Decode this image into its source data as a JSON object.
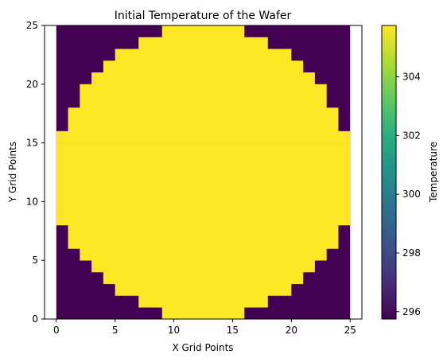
{
  "chart_data": {
    "type": "heatmap",
    "title": "Initial Temperature of the Wafer",
    "xlabel": "X Grid Points",
    "ylabel": "Y Grid Points",
    "xlim": [
      0,
      25
    ],
    "ylim": [
      0,
      25
    ],
    "xticks": [
      "0",
      "5",
      "10",
      "15",
      "20",
      "25"
    ],
    "yticks": [
      "0",
      "5",
      "10",
      "15",
      "20",
      "25"
    ],
    "grid": false,
    "colormap": "viridis",
    "value_range": [
      295.75,
      305.75
    ],
    "background_temperature": 295.75,
    "wafer_temperature": 305.75,
    "hot_spans_by_row": [
      [
        9,
        16
      ],
      [
        7,
        18
      ],
      [
        5,
        20
      ],
      [
        4,
        21
      ],
      [
        3,
        22
      ],
      [
        2,
        23
      ],
      [
        1,
        24
      ],
      [
        1,
        24
      ],
      [
        0,
        25
      ],
      [
        0,
        25
      ],
      [
        0,
        25
      ],
      [
        0,
        25
      ],
      [
        0,
        25
      ],
      [
        0,
        25
      ],
      [
        0,
        25
      ],
      [
        0,
        25
      ],
      [
        1,
        24
      ],
      [
        1,
        24
      ],
      [
        2,
        23
      ],
      [
        2,
        23
      ],
      [
        3,
        22
      ],
      [
        4,
        21
      ],
      [
        5,
        20
      ],
      [
        7,
        18
      ],
      [
        9,
        16
      ]
    ],
    "colorbar": {
      "label": "Temperature",
      "ticks": [
        "296",
        "298",
        "300",
        "302",
        "304"
      ]
    }
  }
}
